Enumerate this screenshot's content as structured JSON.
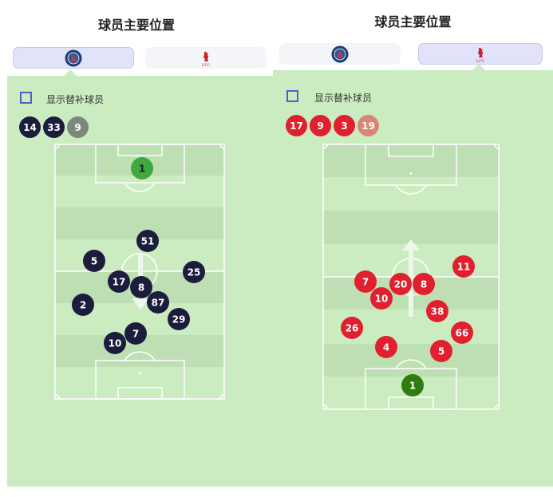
{
  "title": "球员主要位置",
  "show_subs_label": "显示替补球员",
  "colors": {
    "field": "#cbecc1",
    "stripe": "#bedfb4",
    "line": "#ffffff",
    "psg": "#1c1c3c",
    "psg_sub_faded": "#7d877e",
    "psg_gk": "#3fa83f",
    "lfc": "#e0202f",
    "lfc_sub_faded": "#d98676",
    "lfc_gk": "#2f7d0e",
    "checkbox": "#4a62c8",
    "tab_active": "#e1e3fb"
  },
  "tabs": [
    {
      "team": "PSG",
      "icon": "psg-crest-icon"
    },
    {
      "team": "Liverpool",
      "icon": "lfc-liverbird-icon"
    }
  ],
  "panels": [
    {
      "team": "PSG",
      "active_tab": 0,
      "attack_direction": "down",
      "subs": [
        {
          "number": "14",
          "faded": false
        },
        {
          "number": "33",
          "faded": false
        },
        {
          "number": "9",
          "faded": true
        }
      ],
      "players": [
        {
          "number": "1",
          "gk": true
        },
        {
          "number": "51"
        },
        {
          "number": "5"
        },
        {
          "number": "25"
        },
        {
          "number": "17"
        },
        {
          "number": "8"
        },
        {
          "number": "87"
        },
        {
          "number": "2"
        },
        {
          "number": "29"
        },
        {
          "number": "7"
        },
        {
          "number": "10"
        }
      ]
    },
    {
      "team": "Liverpool",
      "active_tab": 1,
      "attack_direction": "up",
      "subs": [
        {
          "number": "17",
          "faded": false
        },
        {
          "number": "9",
          "faded": false
        },
        {
          "number": "3",
          "faded": false
        },
        {
          "number": "19",
          "faded": true
        }
      ],
      "players": [
        {
          "number": "11"
        },
        {
          "number": "7"
        },
        {
          "number": "20"
        },
        {
          "number": "8"
        },
        {
          "number": "10"
        },
        {
          "number": "38"
        },
        {
          "number": "26"
        },
        {
          "number": "66"
        },
        {
          "number": "4"
        },
        {
          "number": "5"
        },
        {
          "number": "1",
          "gk": true
        }
      ]
    }
  ]
}
